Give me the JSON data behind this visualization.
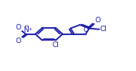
{
  "line_color": "#1a1aaa",
  "line_width": 1.3,
  "text_color": "#1a1aaa",
  "font_size": 6.5,
  "bg_color": "#ffffff",
  "xlim": [
    0,
    10
  ],
  "ylim": [
    0,
    10
  ],
  "figsize": [
    1.71,
    0.89
  ],
  "dpi": 100
}
